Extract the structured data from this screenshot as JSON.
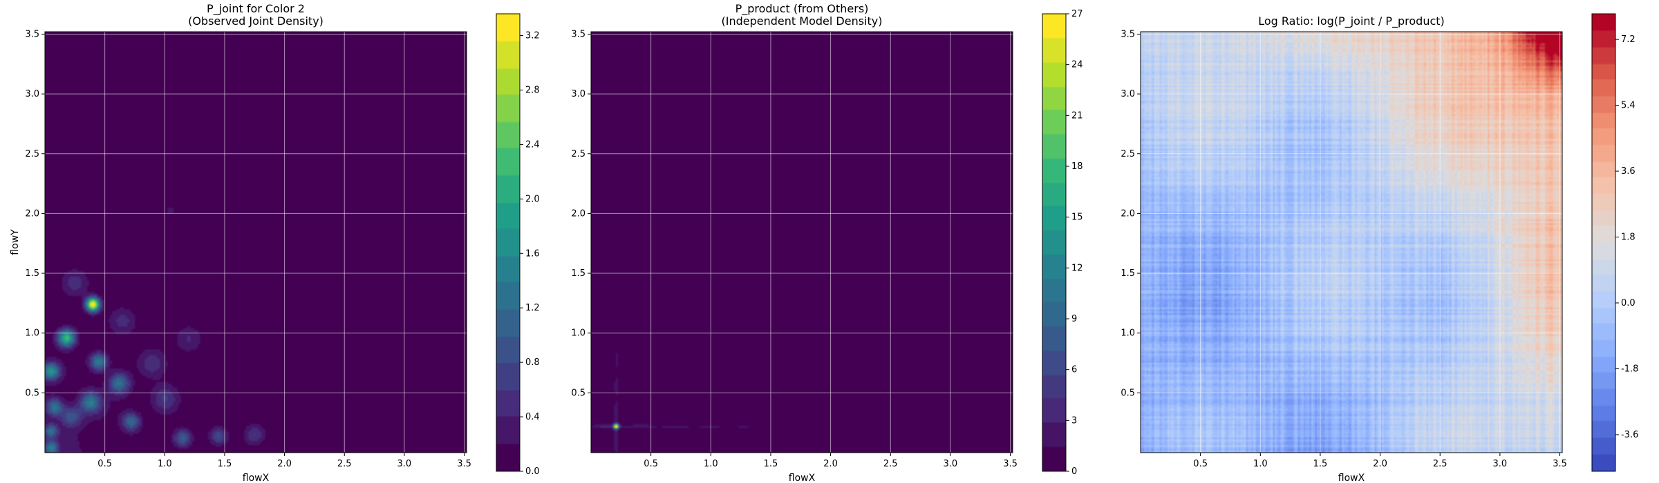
{
  "chart_data": [
    {
      "type": "heatmap",
      "title": "P_joint for Color 2",
      "subtitle": "(Observed Joint Density)",
      "xlabel": "flowX",
      "ylabel": "flowY",
      "xlim": [
        0.0,
        3.52
      ],
      "ylim": [
        0.0,
        3.52
      ],
      "xticks": [
        "0.5",
        "1.0",
        "1.5",
        "2.0",
        "2.5",
        "3.0",
        "3.5"
      ],
      "yticks": [
        "0.5",
        "1.0",
        "1.5",
        "2.0",
        "2.5",
        "3.0",
        "3.5"
      ],
      "grid": true,
      "colormap": "viridis",
      "colorbar": {
        "min": 0.0,
        "max": 3.36,
        "ticks": [
          "0.0",
          "0.4",
          "0.8",
          "1.2",
          "1.6",
          "2.0",
          "2.4",
          "2.8",
          "3.2"
        ]
      },
      "blobs": [
        {
          "x": 0.4,
          "y": 1.24,
          "value": 3.3,
          "sigma": 0.04
        },
        {
          "x": 0.18,
          "y": 0.96,
          "value": 2.2,
          "sigma": 0.05
        },
        {
          "x": 0.05,
          "y": 0.68,
          "value": 1.7,
          "sigma": 0.05
        },
        {
          "x": 0.45,
          "y": 0.76,
          "value": 1.4,
          "sigma": 0.05
        },
        {
          "x": 0.62,
          "y": 0.58,
          "value": 1.2,
          "sigma": 0.06
        },
        {
          "x": 0.38,
          "y": 0.42,
          "value": 1.3,
          "sigma": 0.06
        },
        {
          "x": 0.08,
          "y": 0.38,
          "value": 1.2,
          "sigma": 0.05
        },
        {
          "x": 0.72,
          "y": 0.26,
          "value": 1.1,
          "sigma": 0.05
        },
        {
          "x": 0.05,
          "y": 0.18,
          "value": 1.1,
          "sigma": 0.04
        },
        {
          "x": 0.05,
          "y": 0.04,
          "value": 1.3,
          "sigma": 0.04
        },
        {
          "x": 1.15,
          "y": 0.12,
          "value": 1.0,
          "sigma": 0.05
        },
        {
          "x": 1.45,
          "y": 0.14,
          "value": 0.8,
          "sigma": 0.05
        },
        {
          "x": 0.22,
          "y": 0.3,
          "value": 0.9,
          "sigma": 0.06
        },
        {
          "x": 1.75,
          "y": 0.15,
          "value": 0.6,
          "sigma": 0.06
        },
        {
          "x": 0.9,
          "y": 0.75,
          "value": 0.5,
          "sigma": 0.08
        },
        {
          "x": 1.2,
          "y": 0.95,
          "value": 0.4,
          "sigma": 0.08
        },
        {
          "x": 0.25,
          "y": 1.42,
          "value": 0.5,
          "sigma": 0.08
        },
        {
          "x": 1.0,
          "y": 0.45,
          "value": 0.6,
          "sigma": 0.08
        },
        {
          "x": 1.05,
          "y": 2.02,
          "value": 0.25,
          "sigma": 0.04
        },
        {
          "x": 0.65,
          "y": 1.1,
          "value": 0.45,
          "sigma": 0.08
        }
      ]
    },
    {
      "type": "heatmap",
      "title": "P_product (from Others)",
      "subtitle": "(Independent Model Density)",
      "xlabel": "flowX",
      "ylabel": "",
      "xlim": [
        0.0,
        3.52
      ],
      "ylim": [
        0.0,
        3.52
      ],
      "xticks": [
        "0.5",
        "1.0",
        "1.5",
        "2.0",
        "2.5",
        "3.0",
        "3.5"
      ],
      "yticks": [
        "0.5",
        "1.0",
        "1.5",
        "2.0",
        "2.5",
        "3.0",
        "3.5"
      ],
      "grid": true,
      "colormap": "viridis",
      "colorbar": {
        "min": 0,
        "max": 27,
        "ticks": [
          "0",
          "3",
          "6",
          "9",
          "12",
          "15",
          "18",
          "21",
          "24",
          "27"
        ]
      },
      "peak": {
        "x": 0.21,
        "y": 0.22,
        "value": 27
      },
      "ridges": [
        {
          "axis": "x",
          "at": 0.21,
          "value": 3.5
        },
        {
          "axis": "y",
          "at": 0.22,
          "value": 3.5
        }
      ]
    },
    {
      "type": "heatmap",
      "title": "Log Ratio: log(P_joint / P_product)",
      "subtitle": "",
      "xlabel": "flowX",
      "ylabel": "",
      "xlim": [
        0.0,
        3.52
      ],
      "ylim": [
        0.0,
        3.52
      ],
      "xticks": [
        "0.5",
        "1.0",
        "1.5",
        "2.0",
        "2.5",
        "3.0",
        "3.5"
      ],
      "yticks": [
        "0.5",
        "1.0",
        "1.5",
        "2.0",
        "2.5",
        "3.0",
        "3.5"
      ],
      "grid": true,
      "colormap": "coolwarm",
      "colorbar": {
        "min": -4.6,
        "max": 7.9,
        "ticks": [
          "-3.6",
          "-1.8",
          "0.0",
          "1.8",
          "3.6",
          "5.4",
          "7.2"
        ]
      }
    }
  ]
}
